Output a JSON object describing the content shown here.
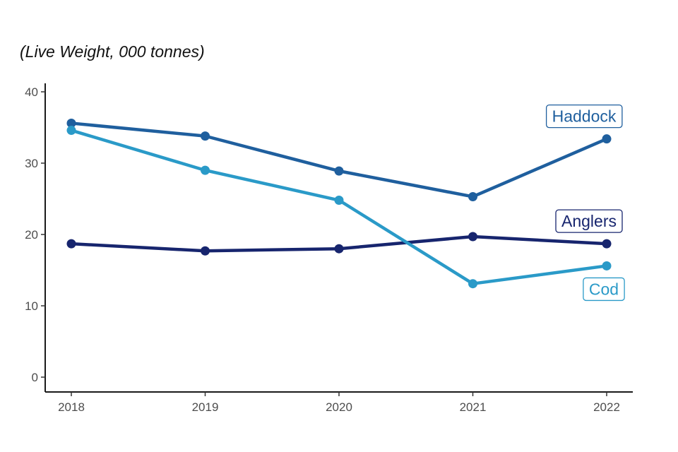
{
  "chart_data": {
    "type": "line",
    "title": "",
    "subtitle": "(Live Weight, 000 tonnes)",
    "xlabel": "",
    "ylabel": "",
    "x": [
      "2018",
      "2019",
      "2020",
      "2021",
      "2022"
    ],
    "ylim": [
      0,
      40
    ],
    "yticks": [
      0,
      10,
      20,
      30,
      40
    ],
    "grid": false,
    "legend": "direct labels at line ends",
    "series": [
      {
        "name": "Haddock",
        "color": "#1f5f9e",
        "values": [
          35.6,
          33.8,
          28.9,
          25.3,
          33.4
        ]
      },
      {
        "name": "Cod",
        "color": "#2a9ac8",
        "values": [
          34.6,
          29.0,
          24.8,
          13.1,
          15.6
        ]
      },
      {
        "name": "Anglers",
        "color": "#17256e",
        "values": [
          18.7,
          17.7,
          18.0,
          19.7,
          18.7
        ]
      }
    ]
  }
}
